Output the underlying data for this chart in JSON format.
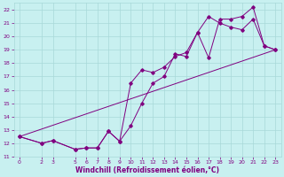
{
  "xlabel": "Windchill (Refroidissement éolien,°C)",
  "bg_color": "#c8f0f0",
  "grid_color": "#a8d8d8",
  "line_color": "#800080",
  "xlim": [
    -0.5,
    23.5
  ],
  "ylim": [
    11,
    22.5
  ],
  "xticks": [
    0,
    2,
    3,
    5,
    6,
    7,
    8,
    9,
    10,
    11,
    12,
    13,
    14,
    15,
    16,
    17,
    18,
    19,
    20,
    21,
    22,
    23
  ],
  "yticks": [
    11,
    12,
    13,
    14,
    15,
    16,
    17,
    18,
    19,
    20,
    21,
    22
  ],
  "series1_x": [
    0,
    2,
    3,
    5,
    6,
    7,
    8,
    9,
    10,
    11,
    12,
    13,
    14,
    15,
    16,
    17,
    18,
    19,
    20,
    21,
    22,
    23
  ],
  "series1_y": [
    12.5,
    12.0,
    12.2,
    11.55,
    11.65,
    11.65,
    12.9,
    12.15,
    16.5,
    17.5,
    17.3,
    17.7,
    18.5,
    18.8,
    20.3,
    18.4,
    21.3,
    21.3,
    21.5,
    22.2,
    19.3,
    19.0
  ],
  "series2_x": [
    0,
    2,
    3,
    5,
    6,
    7,
    8,
    9,
    10,
    11,
    12,
    13,
    14,
    15,
    16,
    17,
    18,
    19,
    20,
    21,
    22,
    23
  ],
  "series2_y": [
    12.5,
    12.0,
    12.2,
    11.55,
    11.65,
    11.65,
    12.9,
    12.15,
    13.3,
    15.0,
    16.5,
    17.0,
    18.7,
    18.5,
    20.3,
    21.5,
    21.0,
    20.7,
    20.5,
    21.3,
    19.3,
    19.0
  ],
  "series3_x": [
    0,
    23
  ],
  "series3_y": [
    12.5,
    19.0
  ]
}
